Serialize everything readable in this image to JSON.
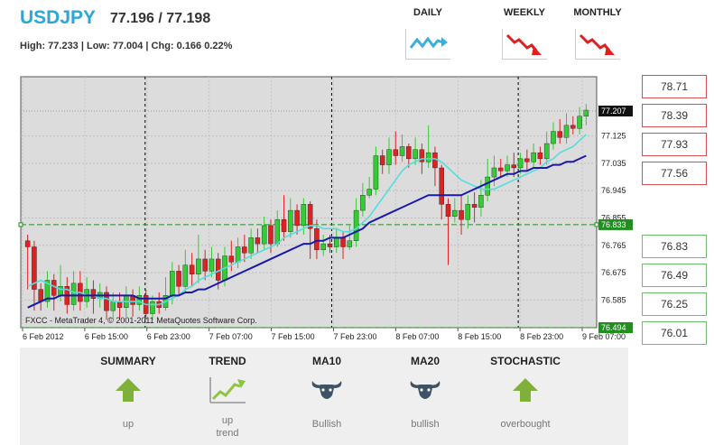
{
  "header": {
    "symbol": "USDJPY",
    "quote": "77.196 / 77.198",
    "stats": "High: 77.233 | Low: 77.004 | Chg: 0.166 0.22%"
  },
  "periods": [
    {
      "label": "DAILY",
      "direction": "flat-up",
      "icon": "trend-wave-icon",
      "color": "#3aaee0"
    },
    {
      "label": "WEEKLY",
      "direction": "down",
      "icon": "trend-down-icon",
      "color": "#e02020"
    },
    {
      "label": "MONTHLY",
      "direction": "down",
      "icon": "trend-down-icon",
      "color": "#e02020"
    }
  ],
  "levels": {
    "resistance": [
      "78.71",
      "78.39",
      "77.93",
      "77.56"
    ],
    "support": [
      "76.83",
      "76.49",
      "76.25",
      "76.01"
    ]
  },
  "indicators": [
    {
      "title": "SUMMARY",
      "value": "up",
      "icon": "up-arrow-icon"
    },
    {
      "title": "TREND",
      "value": "up\ntrend",
      "icon": "trend-up-chart-icon"
    },
    {
      "title": "MA10",
      "value": "Bullish",
      "icon": "bull-icon"
    },
    {
      "title": "MA20",
      "value": "bullish",
      "icon": "bull-icon"
    },
    {
      "title": "STOCHASTIC",
      "value": "overbought",
      "icon": "up-arrow-icon"
    }
  ],
  "chart_data": {
    "type": "candlestick",
    "watermark": "FXCC - MetaTrader 4, © 2001-2011 MetaQuotes Software Corp.",
    "ylim": [
      76.494,
      77.32
    ],
    "y_ticks": [
      "77.125",
      "77.035",
      "76.945",
      "76.855",
      "76.765",
      "76.675",
      "76.585"
    ],
    "x_ticks": [
      "6 Feb 2012",
      "6 Feb 15:00",
      "6 Feb 23:00",
      "7 Feb 07:00",
      "7 Feb 15:00",
      "7 Feb 23:00",
      "8 Feb 07:00",
      "8 Feb 15:00",
      "8 Feb 23:00",
      "9 Feb 07:00"
    ],
    "current_price": "77.207",
    "level_line": "76.833",
    "bottom_label": "76.494",
    "grid": true,
    "up_color": "#33cc33",
    "down_color": "#dd2222",
    "ma_fast_color": "#55dddd",
    "ma_slow_color": "#1a1aaa",
    "candles": [
      [
        76.78,
        76.76,
        76.8,
        76.62
      ],
      [
        76.76,
        76.62,
        76.78,
        76.55
      ],
      [
        76.62,
        76.58,
        76.64,
        76.55
      ],
      [
        76.58,
        76.65,
        76.68,
        76.56
      ],
      [
        76.65,
        76.6,
        76.67,
        76.55
      ],
      [
        76.6,
        76.63,
        76.7,
        76.58
      ],
      [
        76.63,
        76.57,
        76.66,
        76.54
      ],
      [
        76.57,
        76.64,
        76.68,
        76.55
      ],
      [
        76.64,
        76.58,
        76.68,
        76.55
      ],
      [
        76.58,
        76.62,
        76.66,
        76.56
      ],
      [
        76.62,
        76.59,
        76.65,
        76.54
      ],
      [
        76.59,
        76.61,
        76.64,
        76.56
      ],
      [
        76.61,
        76.55,
        76.63,
        76.52
      ],
      [
        76.55,
        76.58,
        76.61,
        76.52
      ],
      [
        76.58,
        76.56,
        76.61,
        76.52
      ],
      [
        76.56,
        76.6,
        76.63,
        76.53
      ],
      [
        76.6,
        76.57,
        76.62,
        76.53
      ],
      [
        76.57,
        76.6,
        76.63,
        76.55
      ],
      [
        76.6,
        76.54,
        76.62,
        76.52
      ],
      [
        76.54,
        76.58,
        76.6,
        76.52
      ],
      [
        76.58,
        76.56,
        76.61,
        76.54
      ],
      [
        76.56,
        76.6,
        76.66,
        76.55
      ],
      [
        76.6,
        76.68,
        76.71,
        76.57
      ],
      [
        76.68,
        76.63,
        76.7,
        76.6
      ],
      [
        76.63,
        76.7,
        76.75,
        76.61
      ],
      [
        76.7,
        76.67,
        76.74,
        76.63
      ],
      [
        76.67,
        76.72,
        76.8,
        76.64
      ],
      [
        76.72,
        76.68,
        76.75,
        76.65
      ],
      [
        76.68,
        76.72,
        76.76,
        76.66
      ],
      [
        76.72,
        76.65,
        76.74,
        76.62
      ],
      [
        76.65,
        76.73,
        76.76,
        76.63
      ],
      [
        76.73,
        76.71,
        76.78,
        76.68
      ],
      [
        76.71,
        76.76,
        76.79,
        76.69
      ],
      [
        76.76,
        76.74,
        76.8,
        76.71
      ],
      [
        76.74,
        76.79,
        76.82,
        76.72
      ],
      [
        76.79,
        76.77,
        76.82,
        76.74
      ],
      [
        76.77,
        76.83,
        76.86,
        76.75
      ],
      [
        76.83,
        76.77,
        76.85,
        76.74
      ],
      [
        76.77,
        76.85,
        76.88,
        76.76
      ],
      [
        76.85,
        76.81,
        76.93,
        76.78
      ],
      [
        76.81,
        76.88,
        76.92,
        76.79
      ],
      [
        76.88,
        76.83,
        76.9,
        76.8
      ],
      [
        76.83,
        76.9,
        76.92,
        76.8
      ],
      [
        76.9,
        76.82,
        76.91,
        76.72
      ],
      [
        76.82,
        76.75,
        76.85,
        76.72
      ],
      [
        76.75,
        76.77,
        76.8,
        76.73
      ],
      [
        76.77,
        76.76,
        76.8,
        76.74
      ],
      [
        76.76,
        76.79,
        76.82,
        76.74
      ],
      [
        76.79,
        76.76,
        76.81,
        76.72
      ],
      [
        76.76,
        76.78,
        76.83,
        76.75
      ],
      [
        76.78,
        76.88,
        76.92,
        76.76
      ],
      [
        76.88,
        76.93,
        76.97,
        76.86
      ],
      [
        76.93,
        76.95,
        76.99,
        76.92
      ],
      [
        76.95,
        77.06,
        77.09,
        76.93
      ],
      [
        77.06,
        77.03,
        77.08,
        77.0
      ],
      [
        77.03,
        77.08,
        77.12,
        77.0
      ],
      [
        77.08,
        77.06,
        77.14,
        77.03
      ],
      [
        77.06,
        77.09,
        77.13,
        77.04
      ],
      [
        77.09,
        77.05,
        77.1,
        77.02
      ],
      [
        77.05,
        77.08,
        77.12,
        77.03
      ],
      [
        77.08,
        77.04,
        77.1,
        77.0
      ],
      [
        77.04,
        77.07,
        77.16,
        77.02
      ],
      [
        77.07,
        77.02,
        77.09,
        76.96
      ],
      [
        77.02,
        76.9,
        77.03,
        76.85
      ],
      [
        76.9,
        76.86,
        76.92,
        76.7
      ],
      [
        76.86,
        76.88,
        76.92,
        76.84
      ],
      [
        76.88,
        76.85,
        76.93,
        76.8
      ],
      [
        76.85,
        76.9,
        76.93,
        76.82
      ],
      [
        76.9,
        76.89,
        76.94,
        76.84
      ],
      [
        76.89,
        76.93,
        76.98,
        76.86
      ],
      [
        76.93,
        76.99,
        77.05,
        76.91
      ],
      [
        76.99,
        77.02,
        77.06,
        76.96
      ],
      [
        77.02,
        77.01,
        77.05,
        76.99
      ],
      [
        77.01,
        77.03,
        77.06,
        76.99
      ],
      [
        77.03,
        77.02,
        77.07,
        76.99
      ],
      [
        77.02,
        77.05,
        77.07,
        77.0
      ],
      [
        77.05,
        77.04,
        77.08,
        77.01
      ],
      [
        77.04,
        77.07,
        77.1,
        77.02
      ],
      [
        77.07,
        77.05,
        77.09,
        77.03
      ],
      [
        77.05,
        77.1,
        77.14,
        77.03
      ],
      [
        77.1,
        77.14,
        77.17,
        77.08
      ],
      [
        77.14,
        77.12,
        77.18,
        77.1
      ],
      [
        77.12,
        77.16,
        77.2,
        77.1
      ],
      [
        77.16,
        77.15,
        77.19,
        77.13
      ],
      [
        77.15,
        77.19,
        77.22,
        77.13
      ],
      [
        77.19,
        77.21,
        77.23,
        77.16
      ]
    ],
    "ma_fast": [
      76.63,
      76.64,
      76.65,
      76.64,
      76.63,
      76.62,
      76.62,
      76.61,
      76.61,
      76.6,
      76.6,
      76.59,
      76.59,
      76.58,
      76.58,
      76.58,
      76.58,
      76.58,
      76.57,
      76.57,
      76.57,
      76.58,
      76.59,
      76.6,
      76.62,
      76.63,
      76.65,
      76.66,
      76.67,
      76.68,
      76.69,
      76.7,
      76.71,
      76.72,
      76.73,
      76.74,
      76.75,
      76.76,
      76.77,
      76.79,
      76.8,
      76.81,
      76.82,
      76.83,
      76.83,
      76.82,
      76.82,
      76.82,
      76.81,
      76.81,
      76.82,
      76.84,
      76.86,
      76.89,
      76.92,
      76.95,
      76.98,
      77.01,
      77.03,
      77.04,
      77.05,
      77.05,
      77.05,
      77.04,
      77.02,
      77.0,
      76.98,
      76.97,
      76.96,
      76.95,
      76.95,
      76.95,
      76.96,
      76.97,
      76.98,
      76.99,
      77.0,
      77.01,
      77.02,
      77.04,
      77.05,
      77.07,
      77.08,
      77.09,
      77.11,
      77.13
    ],
    "ma_slow": [
      76.56,
      76.57,
      76.58,
      76.59,
      76.59,
      76.6,
      76.6,
      76.6,
      76.6,
      76.6,
      76.6,
      76.6,
      76.6,
      76.6,
      76.6,
      76.6,
      76.6,
      76.59,
      76.59,
      76.59,
      76.59,
      76.59,
      76.6,
      76.6,
      76.61,
      76.61,
      76.62,
      76.62,
      76.63,
      76.64,
      76.65,
      76.66,
      76.67,
      76.68,
      76.69,
      76.7,
      76.71,
      76.72,
      76.73,
      76.74,
      76.75,
      76.76,
      76.77,
      76.77,
      76.78,
      76.78,
      76.79,
      76.79,
      76.79,
      76.8,
      76.81,
      76.82,
      76.84,
      76.85,
      76.86,
      76.87,
      76.88,
      76.89,
      76.9,
      76.91,
      76.92,
      76.93,
      76.93,
      76.93,
      76.93,
      76.93,
      76.93,
      76.94,
      76.95,
      76.96,
      76.97,
      76.98,
      76.99,
      77.0,
      77.0,
      77.01,
      77.01,
      77.02,
      77.02,
      77.02,
      77.03,
      77.03,
      77.04,
      77.04,
      77.05,
      77.06
    ]
  }
}
